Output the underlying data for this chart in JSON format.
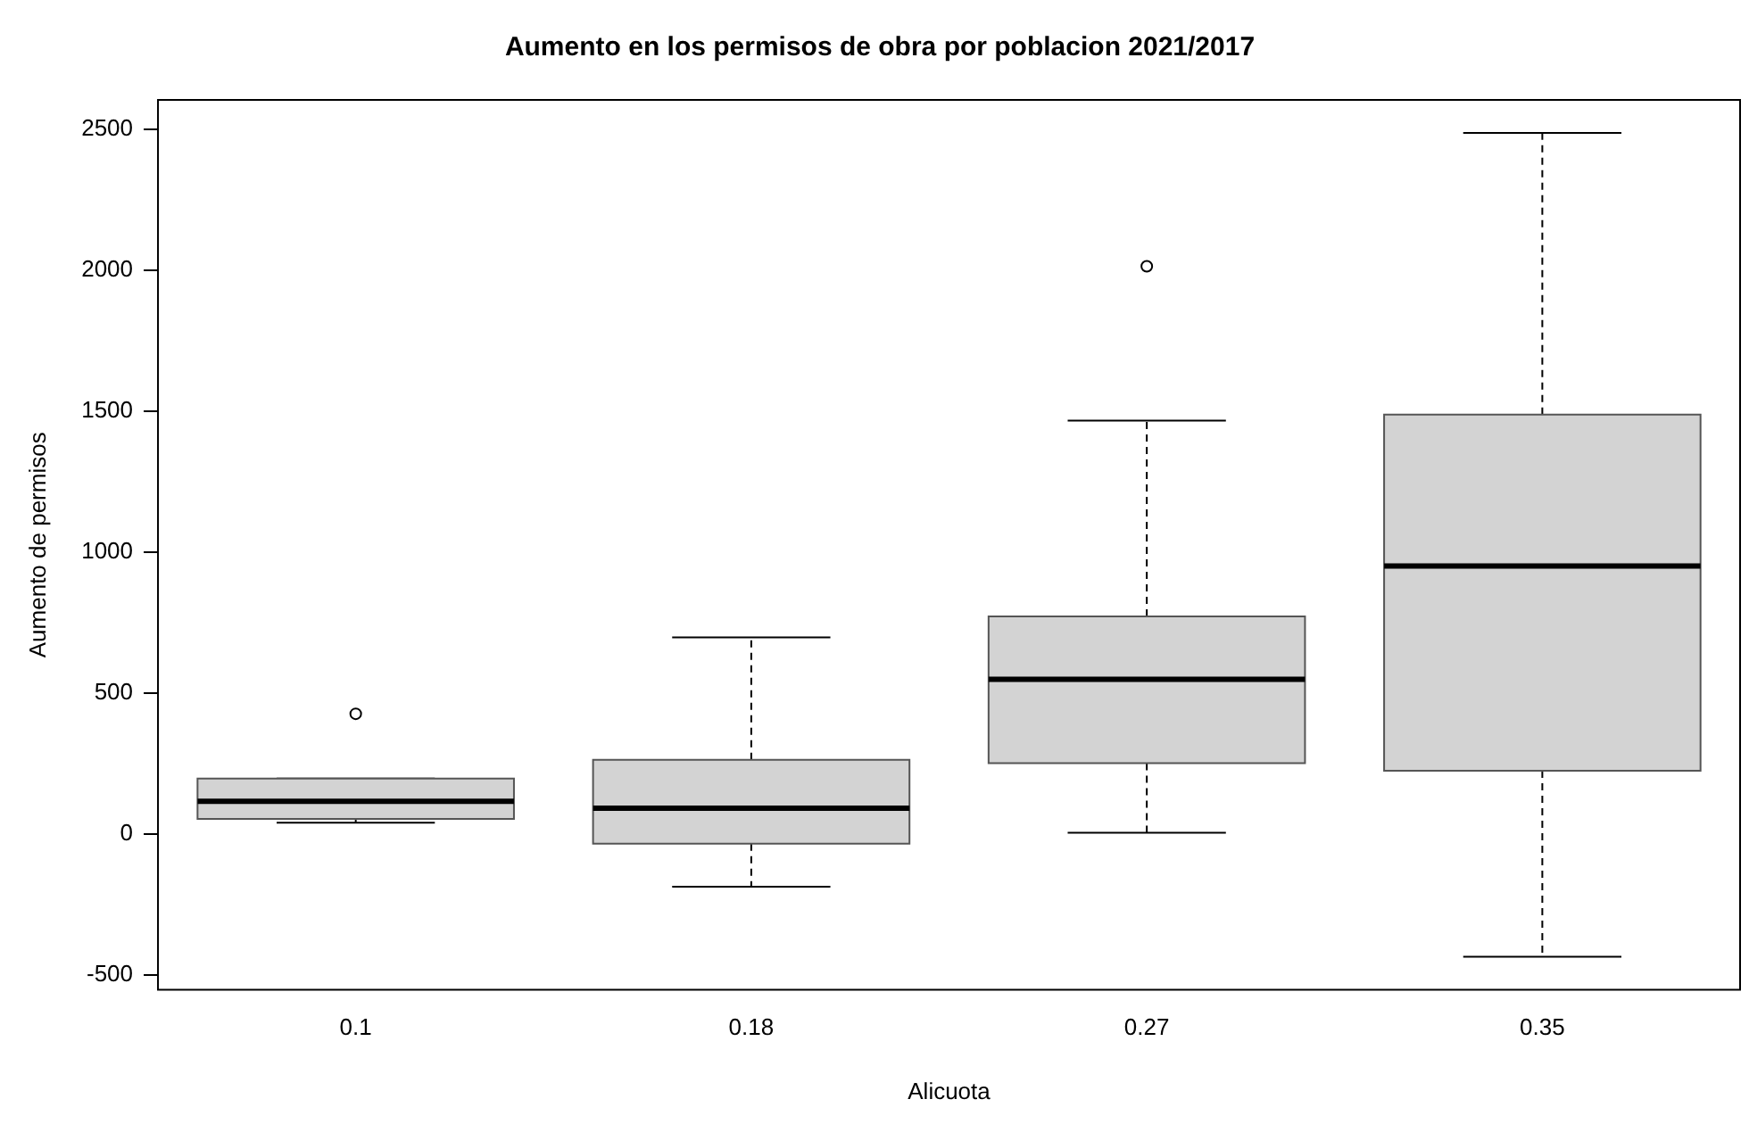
{
  "chart_data": {
    "type": "box",
    "title": "Aumento en los permisos de obra por poblacion 2021/2017",
    "xlabel": "Alicuota",
    "ylabel": "Aumento de permisos",
    "categories": [
      "0.1",
      "0.18",
      "0.27",
      "0.35"
    ],
    "color": "#d3d3d3",
    "boxes": [
      {
        "low": 40,
        "q1": 53,
        "median": 116,
        "q3": 196,
        "high": 196,
        "outliers": [
          426
        ]
      },
      {
        "low": -187,
        "q1": -35,
        "median": 91,
        "q3": 263,
        "high": 697
      },
      {
        "low": 4,
        "q1": 251,
        "median": 548,
        "q3": 771,
        "high": 1466,
        "outliers": [
          2013
        ]
      },
      {
        "low": -436,
        "q1": 224,
        "median": 950,
        "q3": 1487,
        "high": 2486
      }
    ],
    "ylim": [
      -553,
      2603
    ],
    "yticks": [
      -500,
      0,
      500,
      1000,
      1500,
      2000,
      2500
    ],
    "grid": false,
    "legend": false
  }
}
